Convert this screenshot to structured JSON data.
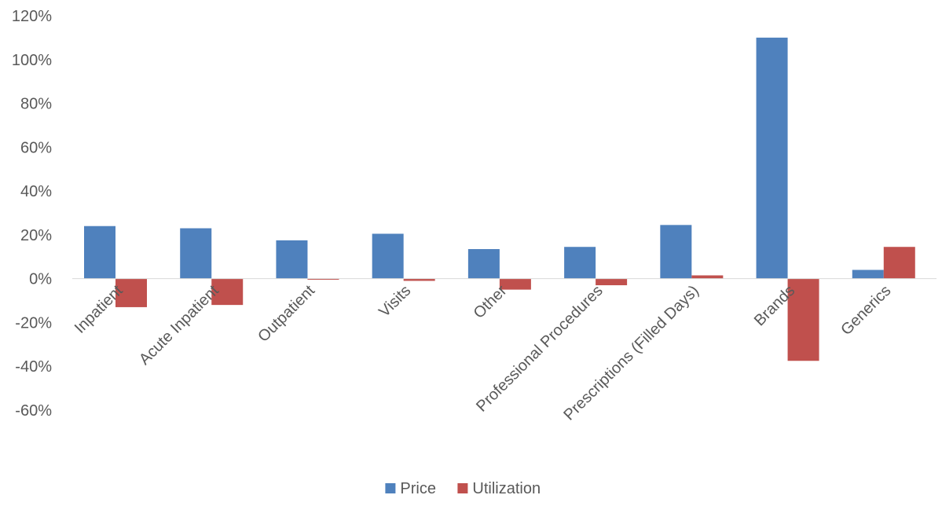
{
  "chart_data": {
    "type": "bar",
    "title": "",
    "xlabel": "",
    "ylabel": "",
    "ylim": [
      -60,
      120
    ],
    "y_ticks": [
      -60,
      -40,
      -20,
      0,
      20,
      40,
      60,
      80,
      100,
      120
    ],
    "y_tick_labels": [
      "-60%",
      "-40%",
      "-20%",
      "0%",
      "20%",
      "40%",
      "60%",
      "80%",
      "100%",
      "120%"
    ],
    "grid": false,
    "legend_position": "bottom-center",
    "categories": [
      "Inpatient",
      "Acute Inpatient",
      "Outpatient",
      "Visits",
      "Other",
      "Professional Procedures",
      "Prescriptions (Filled Days)",
      "Brands",
      "Generics"
    ],
    "series": [
      {
        "name": "Price",
        "color": "#4F81BD",
        "values": [
          24,
          23,
          17.5,
          20.5,
          13.5,
          14.5,
          24.5,
          110,
          4
        ]
      },
      {
        "name": "Utilization",
        "color": "#C0504D",
        "values": [
          -13,
          -12,
          -0.5,
          -1,
          -5,
          -3,
          1.5,
          -37.5,
          14.5
        ]
      }
    ]
  }
}
